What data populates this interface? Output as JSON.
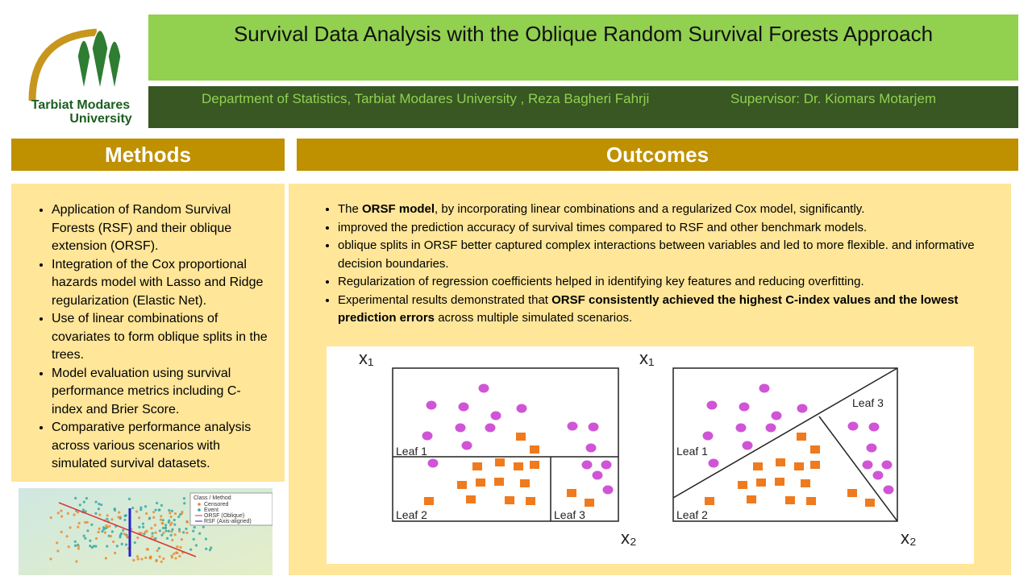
{
  "logo": {
    "line1": "Tarbiat Modares",
    "line2": "University"
  },
  "header": {
    "title": "Survival Data Analysis with the Oblique Random Survival Forests Approach",
    "affiliation": "Department of Statistics, Tarbiat Modares University , Reza Bagheri Fahrji",
    "supervisor": "Supervisor: Dr. Kiomars Motarjem"
  },
  "methods": {
    "heading": "Methods",
    "items": [
      "Application of Random Survival Forests (RSF) and their oblique extension (ORSF).",
      "Integration of the Cox proportional hazards model with Lasso and Ridge regularization (Elastic Net).",
      "Use of linear combinations of covariates to form oblique splits in the trees.",
      "Model evaluation using survival performance metrics including C-index and Brier Score.",
      "Comparative performance analysis across various scenarios with simulated survival datasets."
    ]
  },
  "plot_legend": {
    "title": "Class / Method",
    "entries": [
      "Censored",
      "Event",
      "ORSF (Oblique)",
      "RSF (Axis-aligned)"
    ]
  },
  "outcomes": {
    "heading": "Outcomes",
    "items": [
      [
        "The ",
        "ORSF model",
        ", by incorporating linear combinations and a regularized Cox model, significantly."
      ],
      [
        "improved the prediction accuracy of survival times compared to RSF and other benchmark models."
      ],
      [
        "oblique splits in ORSF better captured complex interactions between variables and led to more flexible. and informative decision boundaries."
      ],
      [
        "Regularization of regression coefficients helped in identifying key features and reducing overfitting."
      ],
      [
        "Experimental results demonstrated that ",
        "ORSF consistently achieved the highest C-index values and the lowest prediction errors",
        " across multiple simulated scenarios."
      ]
    ]
  },
  "diagram": {
    "x1": "x₁",
    "x2": "x₂",
    "leaf1": "Leaf 1",
    "leaf2": "Leaf 2",
    "leaf3": "Leaf 3"
  }
}
